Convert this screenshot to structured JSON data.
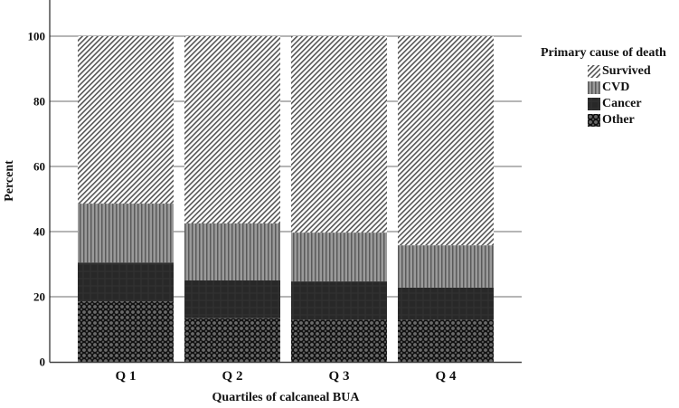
{
  "chart_data": {
    "type": "bar",
    "stacked": true,
    "title": "",
    "xlabel": "Quartiles of calcaneal BUA",
    "ylabel": "Percent",
    "ylim": [
      0,
      100
    ],
    "yticks": [
      0,
      20,
      40,
      60,
      80,
      100
    ],
    "grid": true,
    "legend_position": "right",
    "legend_title": "Primary cause of death",
    "categories": [
      "Q 1",
      "Q 2",
      "Q 3",
      "Q 4"
    ],
    "series": [
      {
        "name": "Other",
        "pattern": "crosshatch-dark",
        "values": [
          18.6,
          13.4,
          13.0,
          13.0
        ]
      },
      {
        "name": "Cancer",
        "pattern": "solid-dark",
        "values": [
          11.9,
          11.6,
          11.7,
          9.8
        ]
      },
      {
        "name": "CVD",
        "pattern": "vertical-lines",
        "values": [
          18.1,
          17.5,
          15.0,
          13.0
        ]
      },
      {
        "name": "Survived",
        "pattern": "diagonal-lines",
        "values": [
          51.4,
          57.5,
          60.3,
          64.2
        ]
      }
    ]
  },
  "legend": {
    "title": "Primary cause of death",
    "items": [
      {
        "label": "Survived",
        "pattern": "pat-survived"
      },
      {
        "label": "CVD",
        "pattern": "pat-cvd"
      },
      {
        "label": "Cancer",
        "pattern": "pat-cancer"
      },
      {
        "label": "Other",
        "pattern": "pat-other"
      }
    ]
  },
  "colors": {
    "grid": "#8a8a8a",
    "axis": "#333333",
    "cvd_bg": "#8c8c8c",
    "cancer_bg": "#2a2a2a",
    "other_bg": "#1e1e1e"
  }
}
